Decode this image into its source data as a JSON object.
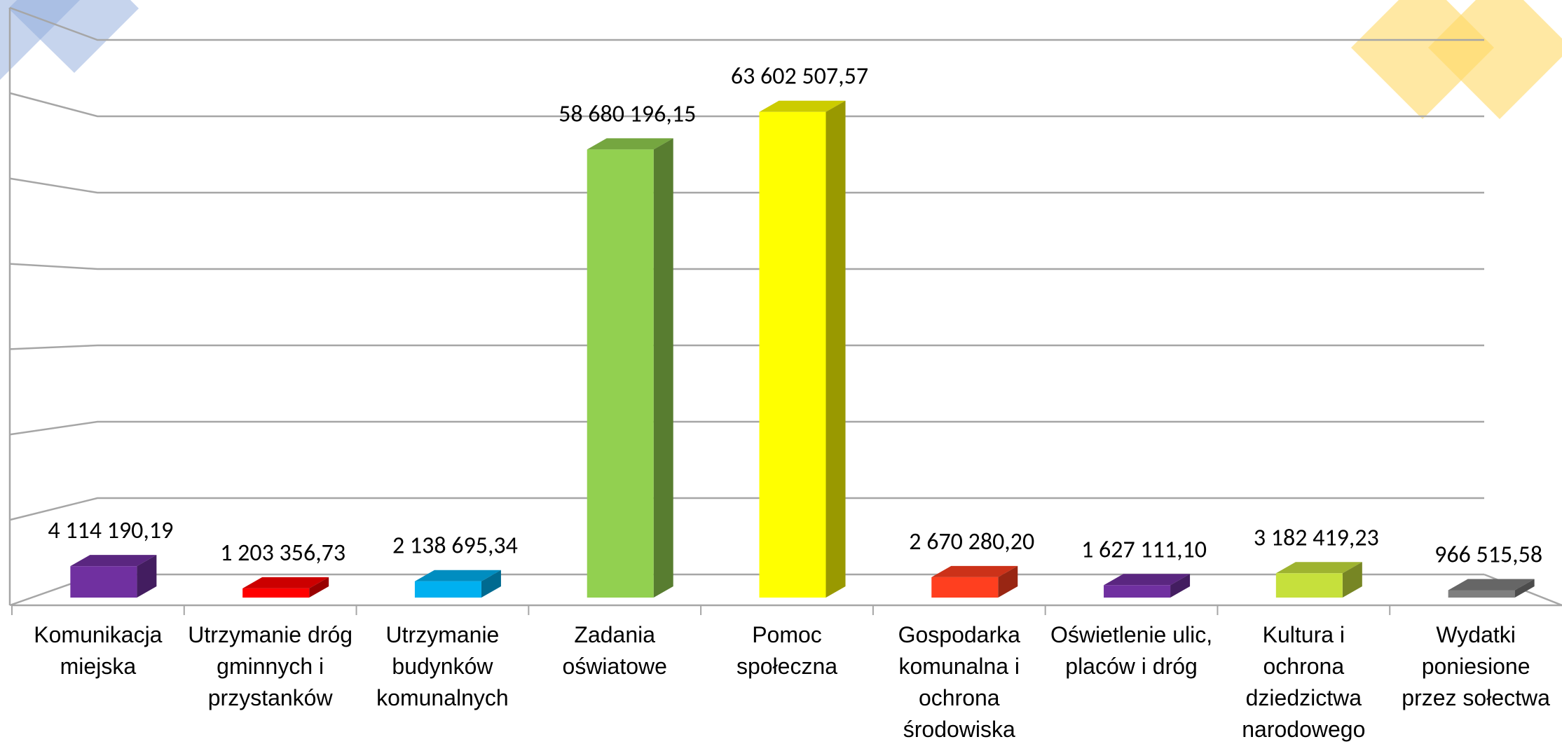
{
  "chart_data": {
    "type": "bar3d",
    "categories": [
      "Komunikacja miejska",
      "Utrzymanie dróg gminnych i przystanków",
      "Utrzymanie budynków komunalnych",
      "Zadania oświatowe",
      "Pomoc społeczna",
      "Gospodarka komunalna i ochrona środowiska",
      "Oświetlenie ulic, placów i dróg",
      "Kultura i ochrona dziedzictwa narodowego",
      "Wydatki poniesione przez sołectwa"
    ],
    "values": [
      4114190.19,
      1203356.73,
      2138695.34,
      58680196.15,
      63602507.57,
      2670280.2,
      1627111.1,
      3182419.23,
      966515.58
    ],
    "value_labels": [
      "4 114 190,19",
      "1 203 356,73",
      "2 138 695,34",
      "58 680 196,15",
      "63 602 507,57",
      "2 670 280,20",
      "1 627 111,10",
      "3 182 419,23",
      "966 515,58"
    ],
    "colors": [
      "#7030a0",
      "#ff0000",
      "#00b0f0",
      "#92d050",
      "#ffff00",
      "#ff3f1f",
      "#7030a0",
      "#c6e03c",
      "#7f7f7f"
    ],
    "ylim": [
      0,
      70000000
    ],
    "yticks": [
      0,
      10000000,
      20000000,
      30000000,
      40000000,
      50000000,
      60000000,
      70000000
    ],
    "grid": true
  }
}
